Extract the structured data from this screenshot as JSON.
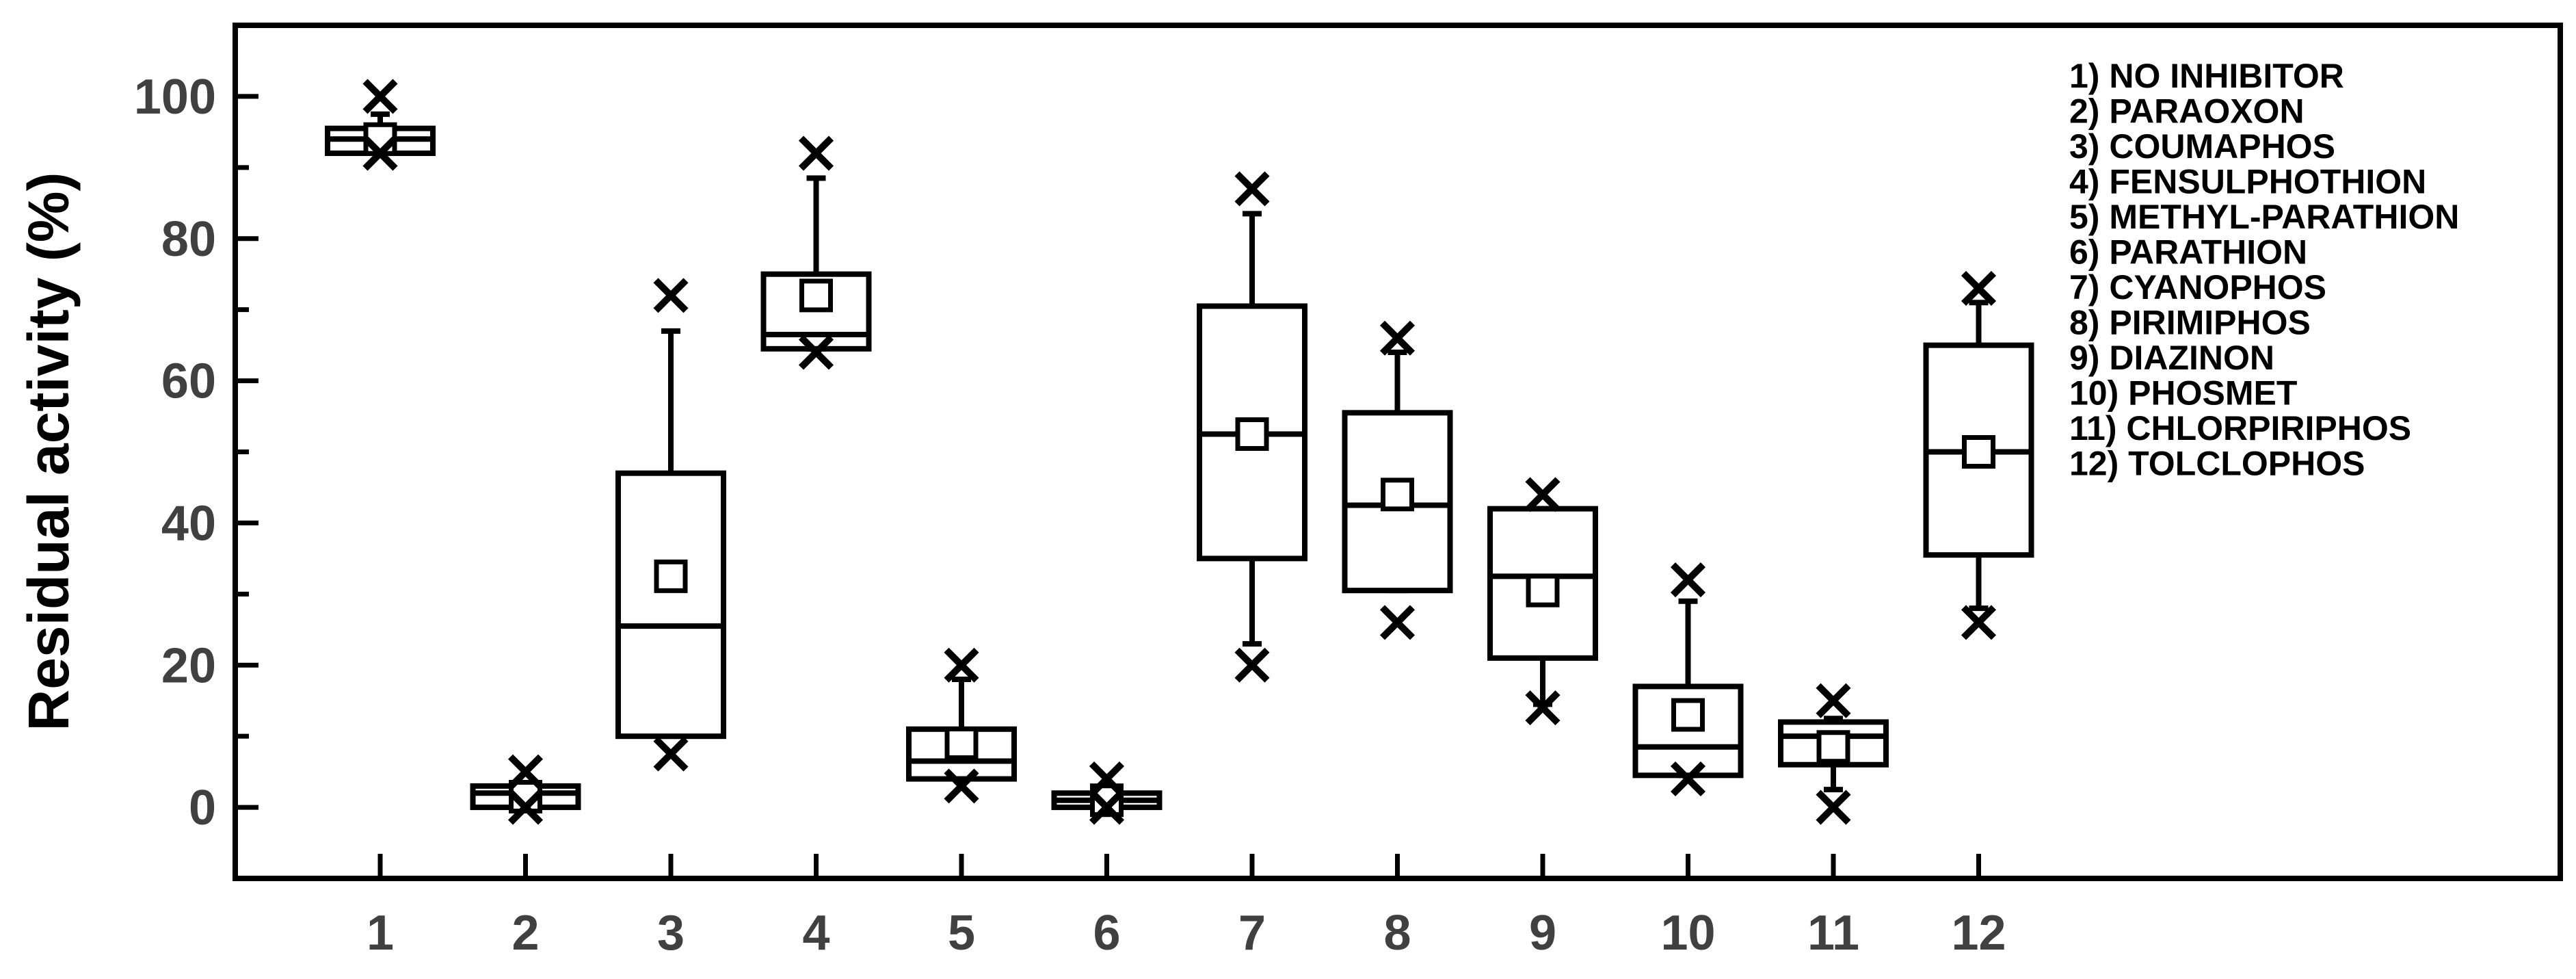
{
  "chart_data": {
    "type": "box",
    "ylabel": "Residual activity (%)",
    "xlabel": "",
    "ylim": [
      -10,
      110
    ],
    "yticks": [
      0,
      20,
      40,
      60,
      80,
      100
    ],
    "categories": [
      "1",
      "2",
      "3",
      "4",
      "5",
      "6",
      "7",
      "8",
      "9",
      "10",
      "11",
      "12"
    ],
    "legend_position": "top-right",
    "legend": [
      "1) NO INHIBITOR",
      "2) PARAOXON",
      "3) COUMAPHOS",
      "4) FENSULPHOTHION",
      "5) METHYL-PARATHION",
      "6) PARATHION",
      "7) CYANOPHOS",
      "8) PIRIMIPHOS",
      "9) DIAZINON",
      "10) PHOSMET",
      "11) CHLORPIRIPHOS",
      "12) TOLCLOPHOS"
    ],
    "boxes": [
      {
        "category": "1",
        "q1": 92,
        "median": 94,
        "q3": 95.5,
        "mean": 94,
        "whisker_low": 92,
        "whisker_high": 97.5,
        "min": 92,
        "max": 100
      },
      {
        "category": "2",
        "q1": 0,
        "median": 2,
        "q3": 3,
        "mean": 1.5,
        "whisker_low": 0,
        "whisker_high": 3,
        "min": 0,
        "max": 5
      },
      {
        "category": "3",
        "q1": 10,
        "median": 25.5,
        "q3": 47,
        "mean": 32.5,
        "whisker_low": 10,
        "whisker_high": 67,
        "min": 7.5,
        "max": 72
      },
      {
        "category": "4",
        "q1": 64.5,
        "median": 66.5,
        "q3": 75,
        "mean": 72,
        "whisker_low": 64.5,
        "whisker_high": 88.5,
        "min": 64,
        "max": 92
      },
      {
        "category": "5",
        "q1": 4,
        "median": 6.5,
        "q3": 11,
        "mean": 9,
        "whisker_low": 4,
        "whisker_high": 18,
        "min": 3,
        "max": 20
      },
      {
        "category": "6",
        "q1": 0,
        "median": 1,
        "q3": 2,
        "mean": 1,
        "whisker_low": 0,
        "whisker_high": 2,
        "min": 0,
        "max": 4
      },
      {
        "category": "7",
        "q1": 35,
        "median": 52.5,
        "q3": 70.5,
        "mean": 52.5,
        "whisker_low": 23,
        "whisker_high": 83.5,
        "min": 20,
        "max": 87
      },
      {
        "category": "8",
        "q1": 30.5,
        "median": 42.5,
        "q3": 55.5,
        "mean": 44,
        "whisker_low": 30.5,
        "whisker_high": 64,
        "min": 26,
        "max": 66
      },
      {
        "category": "9",
        "q1": 21,
        "median": 32.5,
        "q3": 42,
        "mean": 30.5,
        "whisker_low": 14.5,
        "whisker_high": 42,
        "min": 14,
        "max": 44
      },
      {
        "category": "10",
        "q1": 4.5,
        "median": 8.5,
        "q3": 17,
        "mean": 13,
        "whisker_low": 4.5,
        "whisker_high": 29,
        "min": 4,
        "max": 32
      },
      {
        "category": "11",
        "q1": 6,
        "median": 10,
        "q3": 12,
        "mean": 8.5,
        "whisker_low": 2.5,
        "whisker_high": 12.5,
        "min": 0,
        "max": 15
      },
      {
        "category": "12",
        "q1": 35.5,
        "median": 50,
        "q3": 65,
        "mean": 50,
        "whisker_low": 28,
        "whisker_high": 71,
        "min": 26,
        "max": 73
      }
    ]
  }
}
